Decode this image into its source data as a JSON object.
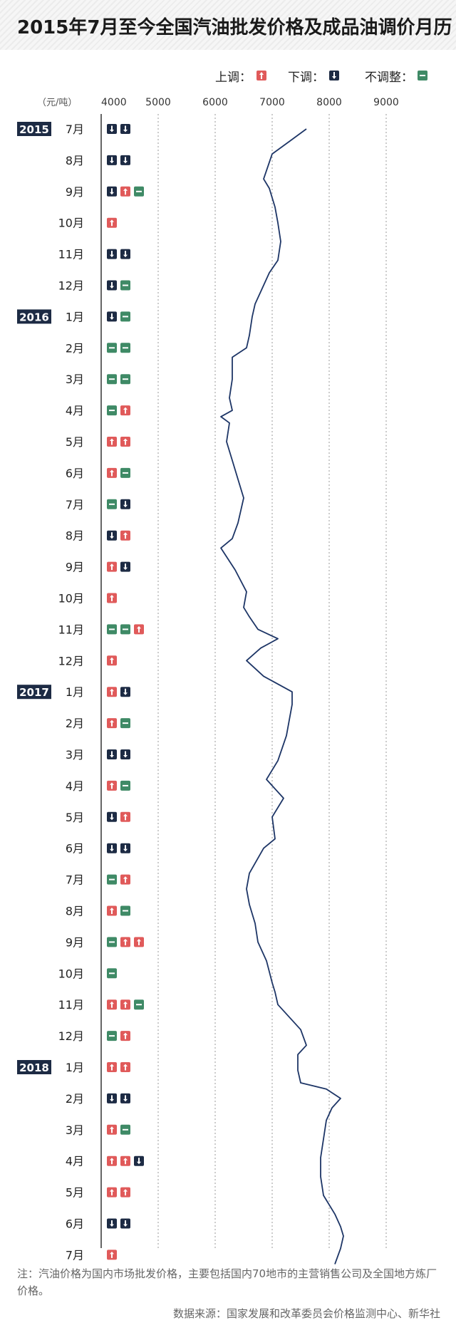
{
  "chart_data": {
    "type": "line",
    "title": "2015年7月至今全国汽油批发价格及成品油调价月历",
    "unit_label": "（元/吨）",
    "xlim": [
      4000,
      9000
    ],
    "xticks": [
      4000,
      5000,
      6000,
      7000,
      8000,
      9000
    ],
    "grid": true,
    "legend": {
      "placement": "top-right",
      "items": [
        {
          "label": "上调：",
          "type": "up"
        },
        {
          "label": "下调：",
          "type": "down"
        },
        {
          "label": "不调整：",
          "type": "flat"
        }
      ]
    },
    "months": [
      {
        "year": "2015",
        "label": "7月",
        "adjust": [
          "down",
          "down"
        ]
      },
      {
        "label": "8月",
        "adjust": [
          "down",
          "down"
        ]
      },
      {
        "label": "9月",
        "adjust": [
          "down",
          "up",
          "flat"
        ]
      },
      {
        "label": "10月",
        "adjust": [
          "up"
        ]
      },
      {
        "label": "11月",
        "adjust": [
          "down",
          "down"
        ]
      },
      {
        "label": "12月",
        "adjust": [
          "down",
          "flat"
        ]
      },
      {
        "year": "2016",
        "label": "1月",
        "adjust": [
          "down",
          "flat"
        ]
      },
      {
        "label": "2月",
        "adjust": [
          "flat",
          "flat"
        ]
      },
      {
        "label": "3月",
        "adjust": [
          "flat",
          "flat"
        ]
      },
      {
        "label": "4月",
        "adjust": [
          "flat",
          "up"
        ]
      },
      {
        "label": "5月",
        "adjust": [
          "up",
          "up"
        ]
      },
      {
        "label": "6月",
        "adjust": [
          "up",
          "flat"
        ]
      },
      {
        "label": "7月",
        "adjust": [
          "flat",
          "down"
        ]
      },
      {
        "label": "8月",
        "adjust": [
          "down",
          "up"
        ]
      },
      {
        "label": "9月",
        "adjust": [
          "up",
          "down"
        ]
      },
      {
        "label": "10月",
        "adjust": [
          "up"
        ]
      },
      {
        "label": "11月",
        "adjust": [
          "flat",
          "flat",
          "up"
        ]
      },
      {
        "label": "12月",
        "adjust": [
          "up"
        ]
      },
      {
        "year": "2017",
        "label": "1月",
        "adjust": [
          "up",
          "down"
        ]
      },
      {
        "label": "2月",
        "adjust": [
          "up",
          "flat"
        ]
      },
      {
        "label": "3月",
        "adjust": [
          "down",
          "down"
        ]
      },
      {
        "label": "4月",
        "adjust": [
          "up",
          "flat"
        ]
      },
      {
        "label": "5月",
        "adjust": [
          "down",
          "up"
        ]
      },
      {
        "label": "6月",
        "adjust": [
          "down",
          "down"
        ]
      },
      {
        "label": "7月",
        "adjust": [
          "flat",
          "up"
        ]
      },
      {
        "label": "8月",
        "adjust": [
          "up",
          "flat"
        ]
      },
      {
        "label": "9月",
        "adjust": [
          "flat",
          "up",
          "up"
        ]
      },
      {
        "label": "10月",
        "adjust": [
          "flat"
        ]
      },
      {
        "label": "11月",
        "adjust": [
          "up",
          "up",
          "flat"
        ]
      },
      {
        "label": "12月",
        "adjust": [
          "flat",
          "up"
        ]
      },
      {
        "year": "2018",
        "label": "1月",
        "adjust": [
          "up",
          "up"
        ]
      },
      {
        "label": "2月",
        "adjust": [
          "down",
          "down"
        ]
      },
      {
        "label": "3月",
        "adjust": [
          "up",
          "flat"
        ]
      },
      {
        "label": "4月",
        "adjust": [
          "up",
          "up",
          "down"
        ]
      },
      {
        "label": "5月",
        "adjust": [
          "up",
          "up"
        ]
      },
      {
        "label": "6月",
        "adjust": [
          "down",
          "down"
        ]
      },
      {
        "label": "7月",
        "adjust": [
          "up"
        ]
      }
    ],
    "series": [
      {
        "points": [
          [
            0.0,
            7600
          ],
          [
            0.4,
            7300
          ],
          [
            0.8,
            7000
          ],
          [
            1.6,
            6850
          ],
          [
            1.9,
            6950
          ],
          [
            2.5,
            7050
          ],
          [
            3.0,
            7100
          ],
          [
            3.6,
            7150
          ],
          [
            4.2,
            7100
          ],
          [
            4.6,
            6950
          ],
          [
            5.2,
            6800
          ],
          [
            5.6,
            6700
          ],
          [
            6.0,
            6650
          ],
          [
            6.6,
            6600
          ],
          [
            7.0,
            6550
          ],
          [
            7.3,
            6300
          ],
          [
            8.0,
            6300
          ],
          [
            8.6,
            6250
          ],
          [
            9.0,
            6300
          ],
          [
            9.2,
            6100
          ],
          [
            9.4,
            6250
          ],
          [
            10.0,
            6200
          ],
          [
            10.6,
            6300
          ],
          [
            11.2,
            6400
          ],
          [
            11.8,
            6500
          ],
          [
            12.2,
            6450
          ],
          [
            12.6,
            6400
          ],
          [
            13.1,
            6300
          ],
          [
            13.4,
            6100
          ],
          [
            14.1,
            6350
          ],
          [
            14.8,
            6550
          ],
          [
            15.3,
            6500
          ],
          [
            15.6,
            6600
          ],
          [
            16.0,
            6750
          ],
          [
            16.3,
            7100
          ],
          [
            16.6,
            6800
          ],
          [
            17.0,
            6550
          ],
          [
            17.5,
            6850
          ],
          [
            18.0,
            7350
          ],
          [
            18.4,
            7350
          ],
          [
            18.9,
            7300
          ],
          [
            19.4,
            7250
          ],
          [
            20.2,
            7100
          ],
          [
            20.8,
            6900
          ],
          [
            21.4,
            7200
          ],
          [
            22.0,
            7000
          ],
          [
            22.7,
            7050
          ],
          [
            23.0,
            6850
          ],
          [
            23.8,
            6600
          ],
          [
            24.3,
            6550
          ],
          [
            24.8,
            6600
          ],
          [
            25.4,
            6700
          ],
          [
            26.0,
            6750
          ],
          [
            26.6,
            6900
          ],
          [
            27.3,
            7000
          ],
          [
            27.6,
            7050
          ],
          [
            28.0,
            7100
          ],
          [
            28.8,
            7500
          ],
          [
            29.3,
            7600
          ],
          [
            29.6,
            7450
          ],
          [
            30.1,
            7450
          ],
          [
            30.5,
            7500
          ],
          [
            30.7,
            7950
          ],
          [
            31.0,
            8200
          ],
          [
            31.3,
            8050
          ],
          [
            31.7,
            7950
          ],
          [
            32.3,
            7900
          ],
          [
            32.9,
            7850
          ],
          [
            33.5,
            7850
          ],
          [
            34.1,
            7900
          ],
          [
            34.7,
            8100
          ],
          [
            35.1,
            8200
          ],
          [
            35.4,
            8250
          ],
          [
            35.8,
            8200
          ],
          [
            36.3,
            8100
          ]
        ]
      }
    ]
  },
  "footer": {
    "note": "注：汽油价格为国内市场批发价格，主要包括国内70地市的主营销售公司及全国地方炼厂价格。",
    "source": "数据来源：国家发展和改革委员会价格监测中心、新华社"
  }
}
